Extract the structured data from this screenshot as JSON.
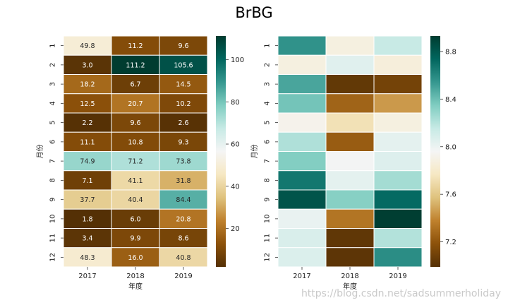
{
  "title": "BrBG",
  "watermark": "https://blog.csdn.net/sadsummerholiday",
  "colormap": "BrBG",
  "cmap_stops": [
    "#543005",
    "#8c510a",
    "#bf812d",
    "#dfc27d",
    "#f6e8c3",
    "#f5f5f5",
    "#c7eae5",
    "#80cdc1",
    "#35978f",
    "#01665e",
    "#003c30"
  ],
  "chart_data": [
    {
      "type": "heatmap",
      "xlabel": "年度",
      "ylabel": "月份",
      "x": [
        "2017",
        "2018",
        "2019"
      ],
      "y": [
        "1",
        "2",
        "3",
        "4",
        "5",
        "6",
        "7",
        "8",
        "9",
        "10",
        "11",
        "12"
      ],
      "values": [
        [
          49.8,
          11.2,
          9.6
        ],
        [
          3.0,
          111.2,
          105.6
        ],
        [
          18.2,
          6.7,
          14.5
        ],
        [
          12.5,
          20.7,
          10.2
        ],
        [
          2.2,
          9.6,
          2.6
        ],
        [
          11.1,
          10.8,
          9.3
        ],
        [
          74.9,
          71.2,
          73.8
        ],
        [
          7.1,
          41.1,
          31.8
        ],
        [
          37.7,
          40.4,
          84.4
        ],
        [
          1.8,
          6.0,
          20.8
        ],
        [
          3.4,
          9.9,
          8.6
        ],
        [
          48.3,
          16.0,
          40.8
        ]
      ],
      "annotations": [
        [
          "49.8",
          "11.2",
          "9.6"
        ],
        [
          "3.0",
          "111.2",
          "105.6"
        ],
        [
          "18.2",
          "6.7",
          "14.5"
        ],
        [
          "12.5",
          "20.7",
          "10.2"
        ],
        [
          "2.2",
          "9.6",
          "2.6"
        ],
        [
          "11.1",
          "10.8",
          "9.3"
        ],
        [
          "74.9",
          "71.2",
          "73.8"
        ],
        [
          "7.1",
          "41.1",
          "31.8"
        ],
        [
          "37.7",
          "40.4",
          "84.4"
        ],
        [
          "1.8",
          "6.0",
          "20.8"
        ],
        [
          "3.4",
          "9.9",
          "8.6"
        ],
        [
          "48.3",
          "16.0",
          "40.8"
        ]
      ],
      "vmin": 1.8,
      "vmax": 111.2,
      "colorbar_ticks": [
        20,
        40,
        60,
        80,
        100
      ]
    },
    {
      "type": "heatmap",
      "xlabel": "年度",
      "ylabel": "月份",
      "x": [
        "2017",
        "2018",
        "2019"
      ],
      "y": [
        "1",
        "2",
        "3",
        "4",
        "5",
        "6",
        "7",
        "8",
        "9",
        "10",
        "11",
        "12"
      ],
      "values": [
        [
          8.56,
          7.88,
          8.15
        ],
        [
          7.88,
          8.05,
          7.86
        ],
        [
          8.49,
          7.04,
          7.1
        ],
        [
          8.38,
          7.26,
          7.45
        ],
        [
          7.92,
          7.73,
          7.88
        ],
        [
          8.22,
          7.23,
          8.03
        ],
        [
          8.34,
          7.97,
          8.06
        ],
        [
          8.67,
          8.03,
          8.25
        ],
        [
          8.82,
          8.33,
          8.72
        ],
        [
          8.01,
          7.33,
          8.92
        ],
        [
          8.08,
          7.03,
          8.21
        ],
        [
          8.07,
          7.02,
          8.58
        ]
      ],
      "annotations": [],
      "vmin": 6.99,
      "vmax": 8.93,
      "colorbar_ticks": [
        7.2,
        7.6,
        8.0,
        8.4,
        8.8
      ]
    }
  ]
}
